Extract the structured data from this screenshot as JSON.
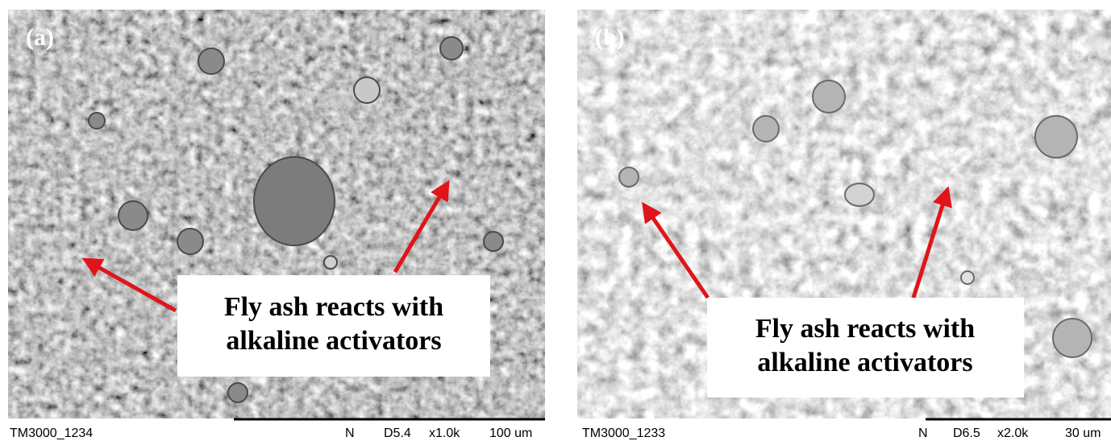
{
  "panels": [
    {
      "label": "(a)",
      "annotation": [
        "Fly ash reacts with",
        "alkaline activators"
      ],
      "footer": {
        "id": "TM3000_1234",
        "mode": "N",
        "distance": "D5.4",
        "magnification": "x1.0k",
        "scale": "100 um"
      }
    },
    {
      "label": "(b)",
      "annotation": [
        "Fly ash reacts with",
        "alkaline activators"
      ],
      "footer": {
        "id": "TM3000_1233",
        "mode": "N",
        "distance": "D6.5",
        "magnification": "x2.0k",
        "scale": "30 um"
      }
    }
  ]
}
